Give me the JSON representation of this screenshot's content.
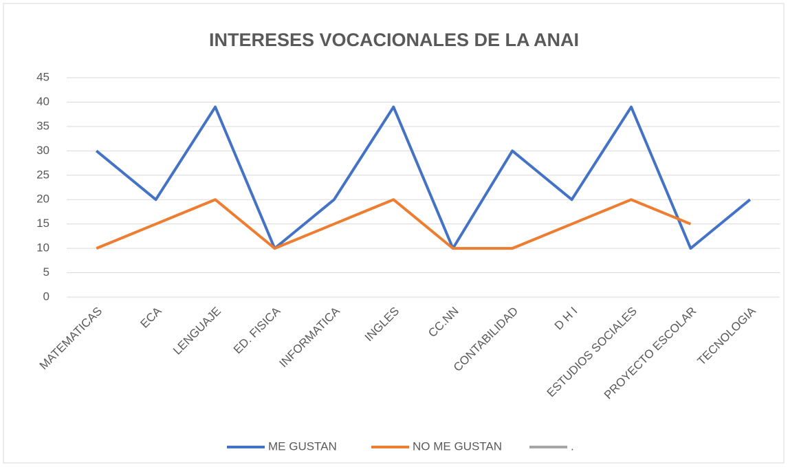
{
  "chart_data": {
    "type": "line",
    "title": "INTERESES VOCACIONALES DE LA ANAI",
    "categories": [
      "MATEMATICAS",
      "ECA",
      "LENGUAJE",
      "ED. FISICA",
      "INFORMATICA",
      "INGLES",
      "CC.NN",
      "CONTABILIDAD",
      "D H I",
      "ESTUDIOS SOCIALES",
      "PROYECTO ESCOLAR",
      "TECNOLOGIA"
    ],
    "series": [
      {
        "name": "ME GUSTAN",
        "color": "#4472c4",
        "values": [
          30,
          20,
          39,
          10,
          20,
          39,
          10,
          30,
          20,
          39,
          10,
          20
        ]
      },
      {
        "name": "NO ME GUSTAN",
        "color": "#ed7d31",
        "values": [
          10,
          15,
          20,
          10,
          15,
          20,
          10,
          10,
          15,
          20,
          15,
          null
        ]
      },
      {
        "name": ".",
        "color": "#a5a5a5",
        "values": [
          null,
          null,
          null,
          null,
          null,
          null,
          null,
          null,
          null,
          null,
          null,
          null
        ]
      }
    ],
    "ylim": [
      0,
      45
    ],
    "yticks": [
      0,
      5,
      10,
      15,
      20,
      25,
      30,
      35,
      40,
      45
    ],
    "grid": true,
    "legend": "bottom"
  }
}
